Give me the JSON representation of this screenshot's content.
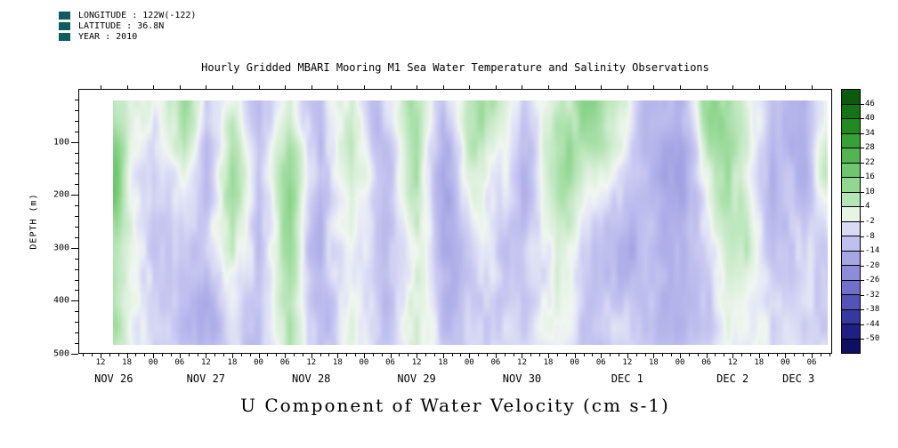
{
  "header": {
    "longitude": "LONGITUDE : 122W(-122)",
    "latitude": "LATITUDE : 36.8N",
    "year": "YEAR : 2010",
    "marker_color": "#0e5c5c"
  },
  "title": "Hourly Gridded MBARI Mooring M1 Sea Water Temperature and Salinity Observations",
  "bottom_title": "U Component of Water Velocity (cm s-1)",
  "chart_data": {
    "type": "heatmap",
    "title": "U Component of Water Velocity (cm s-1)",
    "units": "cm s-1",
    "ylabel": "DEPTH (m)",
    "xlabel": "",
    "y_range": [
      0,
      500
    ],
    "y_ticks": [
      100,
      200,
      300,
      400,
      500
    ],
    "x_hour_tick_labels": [
      "12",
      "18",
      "00",
      "06",
      "12",
      "18",
      "00",
      "06",
      "12",
      "18",
      "00",
      "06",
      "12",
      "18",
      "00",
      "06",
      "12",
      "18",
      "00",
      "06",
      "12",
      "18",
      "00",
      "06",
      "12",
      "18",
      "00",
      "06"
    ],
    "x_date_labels": [
      {
        "label": "NOV 26",
        "hour": 15
      },
      {
        "label": "NOV 27",
        "hour": 36
      },
      {
        "label": "NOV 28",
        "hour": 60
      },
      {
        "label": "NOV 29",
        "hour": 84
      },
      {
        "label": "NOV 30",
        "hour": 108
      },
      {
        "label": "DEC 1",
        "hour": 132
      },
      {
        "label": "DEC 2",
        "hour": 156
      },
      {
        "label": "DEC 3",
        "hour": 171
      }
    ],
    "colorbar": {
      "tick_labels": [
        "46",
        "40",
        "34",
        "28",
        "22",
        "16",
        "10",
        "4",
        "-2",
        "-8",
        "-14",
        "-20",
        "-26",
        "-32",
        "-38",
        "-44",
        "-50"
      ],
      "cell_colors": [
        "#0a5c0a",
        "#147414",
        "#218a21",
        "#36a136",
        "#52b552",
        "#70c670",
        "#91d691",
        "#b4e5b4",
        "#e6f4e6",
        "#dadaf4",
        "#c0c0ee",
        "#a6a6e4",
        "#8c8cd8",
        "#7070ca",
        "#5353b8",
        "#3737a0",
        "#1f1f84",
        "#0f0f62"
      ]
    },
    "colormap_stops": [
      {
        "v": -52,
        "c": "#10106a"
      },
      {
        "v": -44,
        "c": "#2c2c92"
      },
      {
        "v": -36,
        "c": "#4a4ab2"
      },
      {
        "v": -28,
        "c": "#6a6ac8"
      },
      {
        "v": -20,
        "c": "#8b8bd8"
      },
      {
        "v": -14,
        "c": "#a4a4e4"
      },
      {
        "v": -9,
        "c": "#b6b6ec"
      },
      {
        "v": -5,
        "c": "#c8c8f1"
      },
      {
        "v": -1,
        "c": "#e4e7f6"
      },
      {
        "v": 1,
        "c": "#f0f6f0"
      },
      {
        "v": 4,
        "c": "#d8efd8"
      },
      {
        "v": 8,
        "c": "#b4e4b4"
      },
      {
        "v": 12,
        "c": "#92d792"
      },
      {
        "v": 16,
        "c": "#74ca74"
      },
      {
        "v": 22,
        "c": "#55ba55"
      },
      {
        "v": 30,
        "c": "#35a335"
      },
      {
        "v": 40,
        "c": "#1b851b"
      },
      {
        "v": 48,
        "c": "#0d650d"
      }
    ],
    "values_grid": {
      "depths_m": [
        0,
        100,
        200,
        300,
        400,
        500
      ],
      "time_hours_from_nov26": [
        15,
        24,
        31,
        36,
        42,
        48,
        55,
        62,
        69,
        75,
        84,
        90,
        99,
        108,
        116,
        126,
        135,
        144,
        152,
        159,
        165,
        171,
        177
      ],
      "u_by_time": [
        [
          10,
          14,
          14,
          12,
          10,
          8
        ],
        [
          0,
          -6,
          -8,
          -8,
          -6,
          -4
        ],
        [
          8,
          6,
          -2,
          -6,
          -6,
          -4
        ],
        [
          -4,
          -8,
          -8,
          -6,
          -8,
          -6
        ],
        [
          2,
          6,
          8,
          4,
          -2,
          -4
        ],
        [
          -6,
          -8,
          -10,
          -8,
          -6,
          -6
        ],
        [
          6,
          8,
          10,
          10,
          8,
          6
        ],
        [
          -4,
          -8,
          -10,
          -10,
          -8,
          -6
        ],
        [
          4,
          8,
          6,
          2,
          -2,
          -2
        ],
        [
          -6,
          -10,
          -8,
          -8,
          -6,
          -4
        ],
        [
          6,
          8,
          8,
          6,
          4,
          2
        ],
        [
          -4,
          -8,
          -10,
          -8,
          -6,
          -4
        ],
        [
          10,
          8,
          2,
          -4,
          -6,
          -4
        ],
        [
          -2,
          -6,
          -8,
          -8,
          -8,
          -6
        ],
        [
          8,
          10,
          8,
          4,
          0,
          -2
        ],
        [
          12,
          8,
          0,
          -6,
          -8,
          -6
        ],
        [
          -4,
          -6,
          -8,
          -10,
          -8,
          -6
        ],
        [
          -8,
          -10,
          -10,
          -8,
          -8,
          -6
        ],
        [
          14,
          12,
          6,
          0,
          -4,
          -4
        ],
        [
          4,
          8,
          8,
          6,
          2,
          0
        ],
        [
          -6,
          -8,
          -10,
          -8,
          -6,
          -4
        ],
        [
          -8,
          -10,
          -6,
          -4,
          -2,
          -2
        ],
        [
          6,
          4,
          0,
          -2,
          -2,
          0
        ]
      ]
    }
  }
}
